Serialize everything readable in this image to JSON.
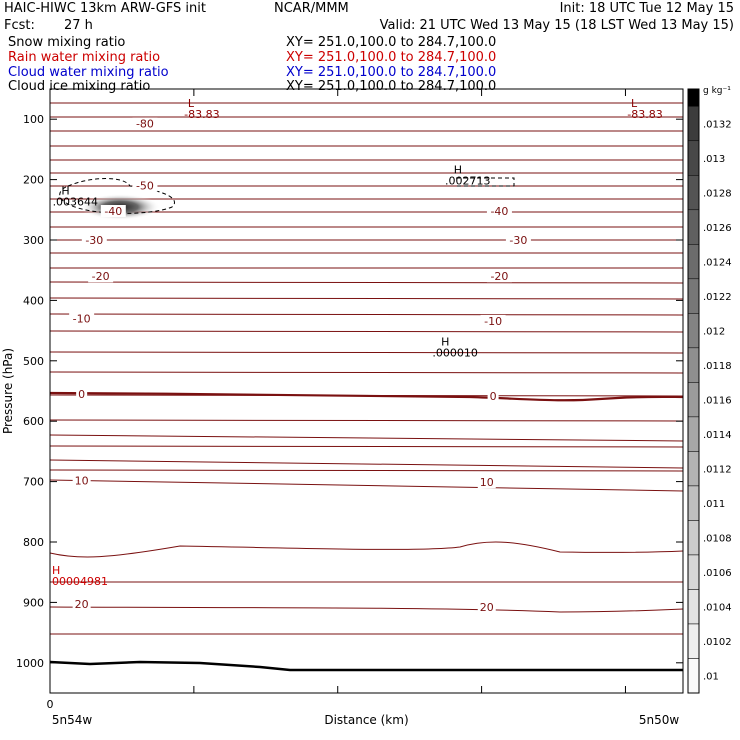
{
  "header": {
    "model_line": "HAIC-HIWC 13km ARW-GFS init",
    "org": "NCAR/MMM",
    "init": "Init: 18 UTC Tue 12 May 15",
    "fcst_label": "Fcst:",
    "fcst_value": "27 h",
    "valid": "Valid: 21 UTC Wed 13 May 15 (18 LST Wed 13 May 15)",
    "fields": [
      {
        "name": "Snow mixing ratio",
        "xy": "XY= 251.0,100.0 to 284.7,100.0",
        "color": "#000000"
      },
      {
        "name": "Rain water mixing ratio",
        "xy": "XY= 251.0,100.0 to 284.7,100.0",
        "color": "#cc0000"
      },
      {
        "name": "Cloud water mixing ratio",
        "xy": "XY= 251.0,100.0 to 284.7,100.0",
        "color": "#0000cc"
      },
      {
        "name": "Cloud ice mixing ratio",
        "xy": "XY= 251.0,100.0 to 284.7,100.0",
        "color": "#000000"
      }
    ]
  },
  "chart_data": {
    "type": "cross-section",
    "xlabel": "Distance (km)",
    "ylabel": "Pressure (hPa)",
    "x_tick_labels": [
      "0"
    ],
    "x_end_labels": [
      "5n54w",
      "5n50w"
    ],
    "y_ticks": [
      100,
      200,
      300,
      400,
      500,
      600,
      700,
      800,
      900,
      1000
    ],
    "ylim": [
      1050,
      50
    ],
    "colorbar": {
      "unit": "g kg⁻¹",
      "labels": [
        ".0132",
        ".013",
        ".0128",
        ".0126",
        ".0124",
        ".0122",
        ".012",
        ".0118",
        ".0116",
        ".0114",
        ".0112",
        ".011",
        ".0108",
        ".0106",
        ".0104",
        ".0102",
        ".01"
      ]
    },
    "temperature_labels": [
      {
        "value": "-80",
        "p": 107,
        "xf": 0.15
      },
      {
        "value": "-50",
        "p": 210,
        "xf": 0.15
      },
      {
        "value": "-40",
        "p": 252,
        "xf": 0.1
      },
      {
        "value": "-40",
        "p": 252,
        "xf": 0.71
      },
      {
        "value": "-30",
        "p": 300,
        "xf": 0.07
      },
      {
        "value": "-30",
        "p": 300,
        "xf": 0.74
      },
      {
        "value": "-20",
        "p": 360,
        "xf": 0.08
      },
      {
        "value": "-20",
        "p": 360,
        "xf": 0.71
      },
      {
        "value": "-10",
        "p": 430,
        "xf": 0.05
      },
      {
        "value": "-10",
        "p": 434,
        "xf": 0.7
      },
      {
        "value": "0",
        "p": 555,
        "xf": 0.05
      },
      {
        "value": "0",
        "p": 558,
        "xf": 0.7
      },
      {
        "value": "10",
        "p": 698,
        "xf": 0.05
      },
      {
        "value": "10",
        "p": 701,
        "xf": 0.69
      },
      {
        "value": "20",
        "p": 903,
        "xf": 0.05
      },
      {
        "value": "20",
        "p": 908,
        "xf": 0.69
      }
    ],
    "extrema_labels": [
      {
        "letter": "L",
        "value": "-83.83",
        "color": "#8b0000",
        "p": 80,
        "xf": 0.24
      },
      {
        "letter": "L",
        "value": "-83.83",
        "color": "#8b0000",
        "p": 80,
        "xf": 0.94
      },
      {
        "letter": "H",
        "value": ".003644",
        "color": "#000000",
        "p": 225,
        "xf": 0.04
      },
      {
        "letter": "H",
        "value": ".002713",
        "color": "#000000",
        "p": 190,
        "xf": 0.66
      },
      {
        "letter": "H",
        "value": ".000010",
        "color": "#000000",
        "p": 475,
        "xf": 0.64
      },
      {
        "letter": "H",
        "value": "00004981",
        "color": "#cc0000",
        "p": 853,
        "xf": 0.0
      }
    ]
  }
}
